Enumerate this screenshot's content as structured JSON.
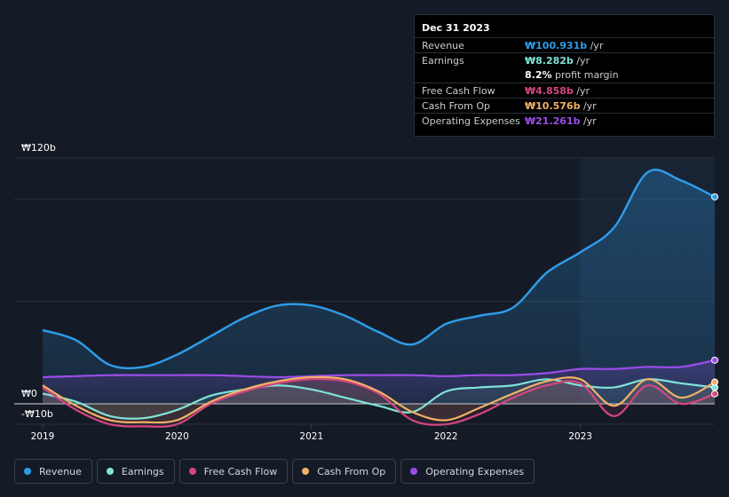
{
  "tooltip": {
    "date": "Dec 31 2023",
    "rows": [
      {
        "label": "Revenue",
        "value": "₩100.931b",
        "unit": " /yr",
        "color": "#2f9be8"
      },
      {
        "label": "Earnings",
        "value": "₩8.282b",
        "unit": " /yr",
        "color": "#7fe3d8"
      },
      {
        "label": "",
        "margin_value": "8.2%",
        "margin_label": " profit margin"
      },
      {
        "label": "Free Cash Flow",
        "value": "₩4.858b",
        "unit": " /yr",
        "color": "#d6467e"
      },
      {
        "label": "Cash From Op",
        "value": "₩10.576b",
        "unit": " /yr",
        "color": "#f0b167"
      },
      {
        "label": "Operating Expenses",
        "value": "₩21.261b",
        "unit": " /yr",
        "color": "#9b4ce8"
      }
    ]
  },
  "legend": [
    {
      "label": "Revenue",
      "color": "#2f9be8"
    },
    {
      "label": "Earnings",
      "color": "#7fe3d8"
    },
    {
      "label": "Free Cash Flow",
      "color": "#d6467e"
    },
    {
      "label": "Cash From Op",
      "color": "#f0b167"
    },
    {
      "label": "Operating Expenses",
      "color": "#9b4ce8"
    }
  ],
  "chart_data": {
    "type": "area",
    "title": "",
    "xlabel": "",
    "ylabel": "",
    "ylim": [
      -10,
      120
    ],
    "y_tick_labels": [
      "₩120b",
      "₩0",
      "-₩10b"
    ],
    "x_tick_labels": [
      "2019",
      "2020",
      "2021",
      "2022",
      "2023"
    ],
    "xlim": [
      2019.0,
      2024.0
    ],
    "highlight_from": 2023.0,
    "series": [
      {
        "name": "Revenue",
        "color": "#2f9be8",
        "x": [
          2019.0,
          2019.25,
          2019.5,
          2019.75,
          2020.0,
          2020.25,
          2020.5,
          2020.75,
          2021.0,
          2021.25,
          2021.5,
          2021.75,
          2022.0,
          2022.25,
          2022.5,
          2022.75,
          2023.0,
          2023.25,
          2023.5,
          2023.75,
          2024.0
        ],
        "values": [
          36,
          31,
          19,
          18,
          24,
          33,
          42,
          48,
          48,
          43,
          35,
          29,
          39,
          43,
          47,
          64,
          74,
          86,
          113,
          109,
          101
        ]
      },
      {
        "name": "Earnings",
        "color": "#7fe3d8",
        "x": [
          2019.0,
          2019.25,
          2019.5,
          2019.75,
          2020.0,
          2020.25,
          2020.5,
          2020.75,
          2021.0,
          2021.25,
          2021.5,
          2021.75,
          2022.0,
          2022.25,
          2022.5,
          2022.75,
          2023.0,
          2023.25,
          2023.5,
          2023.75,
          2024.0
        ],
        "values": [
          5,
          1,
          -6,
          -7,
          -3,
          4,
          7,
          9,
          7,
          3,
          -1,
          -4,
          6,
          8,
          9,
          12,
          9,
          8,
          12,
          10,
          8
        ]
      },
      {
        "name": "Free Cash Flow",
        "color": "#d6467e",
        "x": [
          2019.0,
          2019.25,
          2019.5,
          2019.75,
          2020.0,
          2020.25,
          2020.5,
          2020.75,
          2021.0,
          2021.25,
          2021.5,
          2021.75,
          2022.0,
          2022.25,
          2022.5,
          2022.75,
          2023.0,
          2023.25,
          2023.5,
          2023.75,
          2024.0
        ],
        "values": [
          8,
          -3,
          -10,
          -11,
          -10,
          0,
          6,
          10,
          12,
          11,
          5,
          -8,
          -10,
          -5,
          3,
          9,
          10,
          -6,
          9,
          0,
          4.9
        ]
      },
      {
        "name": "Cash From Op",
        "color": "#f0b167",
        "x": [
          2019.0,
          2019.25,
          2019.5,
          2019.75,
          2020.0,
          2020.25,
          2020.5,
          2020.75,
          2021.0,
          2021.25,
          2021.5,
          2021.75,
          2022.0,
          2022.25,
          2022.5,
          2022.75,
          2023.0,
          2023.25,
          2023.5,
          2023.75,
          2024.0
        ],
        "values": [
          9,
          -1,
          -8,
          -9,
          -8,
          1,
          7,
          11,
          13,
          12,
          6,
          -4,
          -8,
          -2,
          5,
          11,
          12,
          -1,
          12,
          3,
          10.6
        ]
      },
      {
        "name": "Operating Expenses",
        "color": "#9b4ce8",
        "x": [
          2019.0,
          2019.25,
          2019.5,
          2019.75,
          2020.0,
          2020.25,
          2020.5,
          2020.75,
          2021.0,
          2021.25,
          2021.5,
          2021.75,
          2022.0,
          2022.25,
          2022.5,
          2022.75,
          2023.0,
          2023.25,
          2023.5,
          2023.75,
          2024.0
        ],
        "values": [
          13,
          13.5,
          14,
          14,
          14,
          14,
          13.5,
          13,
          13.5,
          14,
          14,
          14,
          13.5,
          14,
          14,
          15,
          17,
          17,
          18,
          18,
          21.3
        ]
      }
    ]
  }
}
